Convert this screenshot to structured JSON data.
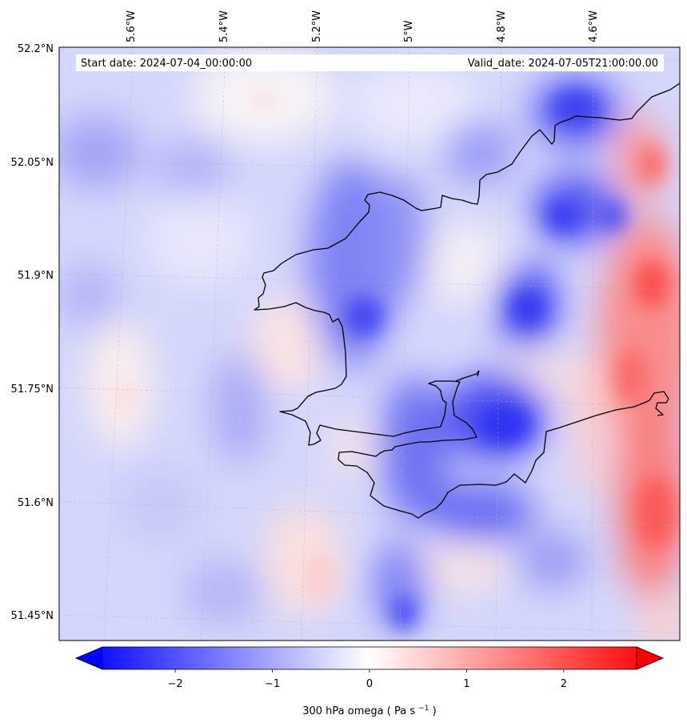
{
  "map": {
    "banner": {
      "start_date": "Start date: 2024-07-04_00:00:00",
      "valid_date": "Valid_date: 2024-07-05T21:00:00.00"
    },
    "lon_labels": [
      "5.6°W",
      "5.4°W",
      "5.2°W",
      "5°W",
      "4.8°W",
      "4.6°W"
    ],
    "lat_labels": [
      "52.2°N",
      "52.05°N",
      "51.9°N",
      "51.75°N",
      "51.6°N",
      "51.45°N"
    ],
    "field": {
      "variable": "300 hPa omega",
      "units": "Pa s",
      "units_exponent": "−1"
    },
    "colorbar": {
      "ticks": [
        "−2",
        "−1",
        "0",
        "1",
        "2"
      ],
      "tick_values": [
        -2,
        -1,
        0,
        1,
        2
      ],
      "range": [
        -2.75,
        2.75
      ],
      "cmap": "bwr",
      "extend": "both",
      "colors": {
        "negative": "#0000ff",
        "zero": "#ffffff",
        "positive": "#ff0000"
      }
    },
    "coastline_color": "#000000",
    "gridlines": true
  }
}
